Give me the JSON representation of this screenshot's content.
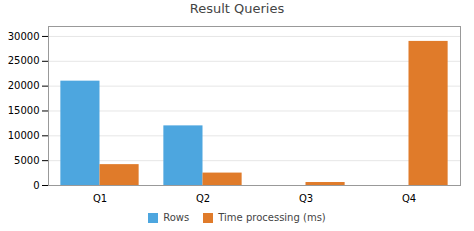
{
  "chart_data": {
    "type": "bar",
    "title": "Result Queries",
    "categories": [
      "Q1",
      "Q2",
      "Q3",
      "Q4"
    ],
    "series": [
      {
        "name": "Rows",
        "color": "#4da6df",
        "values": [
          21000,
          12000,
          0,
          0
        ]
      },
      {
        "name": "Time processing (ms)",
        "color": "#e07b2a",
        "values": [
          4200,
          2500,
          600,
          29000
        ]
      }
    ],
    "ylim": [
      0,
      32000
    ],
    "yticks": [
      0,
      5000,
      10000,
      15000,
      20000,
      25000,
      30000
    ],
    "grid": true,
    "legend": "bottom"
  }
}
